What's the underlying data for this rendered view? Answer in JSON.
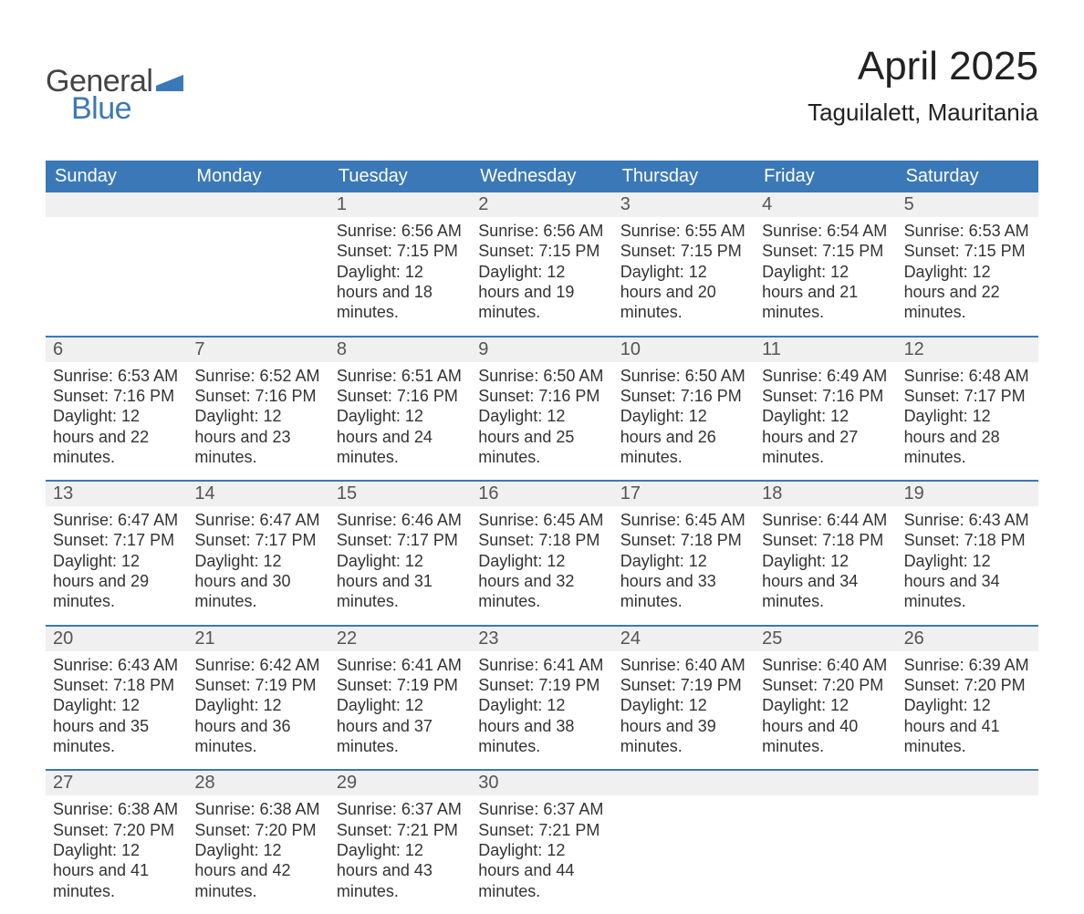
{
  "meta": {
    "type": "calendar",
    "columns": 7,
    "rows": 5,
    "colors": {
      "header_bg": "#3b78b8",
      "header_text": "#ffffff",
      "stripe_bg": "#f0f0f0",
      "text": "#2b2b2b",
      "week_divider": "#3b78b8",
      "logo_gray": "#444444",
      "logo_blue": "#3b78b8"
    },
    "fontsizes_pt": {
      "title": 33,
      "subtitle": 20,
      "weekday": 15,
      "daynum": 15,
      "body": 13.5
    }
  },
  "logo": {
    "word1": "General",
    "word2": "Blue"
  },
  "title": "April 2025",
  "subtitle": "Taguilalett, Mauritania",
  "weekdays": [
    "Sunday",
    "Monday",
    "Tuesday",
    "Wednesday",
    "Thursday",
    "Friday",
    "Saturday"
  ],
  "label": {
    "sunrise": "Sunrise:",
    "sunset": "Sunset:",
    "daylight": "Daylight:"
  },
  "weeks": [
    [
      null,
      null,
      {
        "n": "1",
        "sunrise": "6:56 AM",
        "sunset": "7:15 PM",
        "daylight": "12 hours and 18 minutes."
      },
      {
        "n": "2",
        "sunrise": "6:56 AM",
        "sunset": "7:15 PM",
        "daylight": "12 hours and 19 minutes."
      },
      {
        "n": "3",
        "sunrise": "6:55 AM",
        "sunset": "7:15 PM",
        "daylight": "12 hours and 20 minutes."
      },
      {
        "n": "4",
        "sunrise": "6:54 AM",
        "sunset": "7:15 PM",
        "daylight": "12 hours and 21 minutes."
      },
      {
        "n": "5",
        "sunrise": "6:53 AM",
        "sunset": "7:15 PM",
        "daylight": "12 hours and 22 minutes."
      }
    ],
    [
      {
        "n": "6",
        "sunrise": "6:53 AM",
        "sunset": "7:16 PM",
        "daylight": "12 hours and 22 minutes."
      },
      {
        "n": "7",
        "sunrise": "6:52 AM",
        "sunset": "7:16 PM",
        "daylight": "12 hours and 23 minutes."
      },
      {
        "n": "8",
        "sunrise": "6:51 AM",
        "sunset": "7:16 PM",
        "daylight": "12 hours and 24 minutes."
      },
      {
        "n": "9",
        "sunrise": "6:50 AM",
        "sunset": "7:16 PM",
        "daylight": "12 hours and 25 minutes."
      },
      {
        "n": "10",
        "sunrise": "6:50 AM",
        "sunset": "7:16 PM",
        "daylight": "12 hours and 26 minutes."
      },
      {
        "n": "11",
        "sunrise": "6:49 AM",
        "sunset": "7:16 PM",
        "daylight": "12 hours and 27 minutes."
      },
      {
        "n": "12",
        "sunrise": "6:48 AM",
        "sunset": "7:17 PM",
        "daylight": "12 hours and 28 minutes."
      }
    ],
    [
      {
        "n": "13",
        "sunrise": "6:47 AM",
        "sunset": "7:17 PM",
        "daylight": "12 hours and 29 minutes."
      },
      {
        "n": "14",
        "sunrise": "6:47 AM",
        "sunset": "7:17 PM",
        "daylight": "12 hours and 30 minutes."
      },
      {
        "n": "15",
        "sunrise": "6:46 AM",
        "sunset": "7:17 PM",
        "daylight": "12 hours and 31 minutes."
      },
      {
        "n": "16",
        "sunrise": "6:45 AM",
        "sunset": "7:18 PM",
        "daylight": "12 hours and 32 minutes."
      },
      {
        "n": "17",
        "sunrise": "6:45 AM",
        "sunset": "7:18 PM",
        "daylight": "12 hours and 33 minutes."
      },
      {
        "n": "18",
        "sunrise": "6:44 AM",
        "sunset": "7:18 PM",
        "daylight": "12 hours and 34 minutes."
      },
      {
        "n": "19",
        "sunrise": "6:43 AM",
        "sunset": "7:18 PM",
        "daylight": "12 hours and 34 minutes."
      }
    ],
    [
      {
        "n": "20",
        "sunrise": "6:43 AM",
        "sunset": "7:18 PM",
        "daylight": "12 hours and 35 minutes."
      },
      {
        "n": "21",
        "sunrise": "6:42 AM",
        "sunset": "7:19 PM",
        "daylight": "12 hours and 36 minutes."
      },
      {
        "n": "22",
        "sunrise": "6:41 AM",
        "sunset": "7:19 PM",
        "daylight": "12 hours and 37 minutes."
      },
      {
        "n": "23",
        "sunrise": "6:41 AM",
        "sunset": "7:19 PM",
        "daylight": "12 hours and 38 minutes."
      },
      {
        "n": "24",
        "sunrise": "6:40 AM",
        "sunset": "7:19 PM",
        "daylight": "12 hours and 39 minutes."
      },
      {
        "n": "25",
        "sunrise": "6:40 AM",
        "sunset": "7:20 PM",
        "daylight": "12 hours and 40 minutes."
      },
      {
        "n": "26",
        "sunrise": "6:39 AM",
        "sunset": "7:20 PM",
        "daylight": "12 hours and 41 minutes."
      }
    ],
    [
      {
        "n": "27",
        "sunrise": "6:38 AM",
        "sunset": "7:20 PM",
        "daylight": "12 hours and 41 minutes."
      },
      {
        "n": "28",
        "sunrise": "6:38 AM",
        "sunset": "7:20 PM",
        "daylight": "12 hours and 42 minutes."
      },
      {
        "n": "29",
        "sunrise": "6:37 AM",
        "sunset": "7:21 PM",
        "daylight": "12 hours and 43 minutes."
      },
      {
        "n": "30",
        "sunrise": "6:37 AM",
        "sunset": "7:21 PM",
        "daylight": "12 hours and 44 minutes."
      },
      null,
      null,
      null
    ]
  ]
}
